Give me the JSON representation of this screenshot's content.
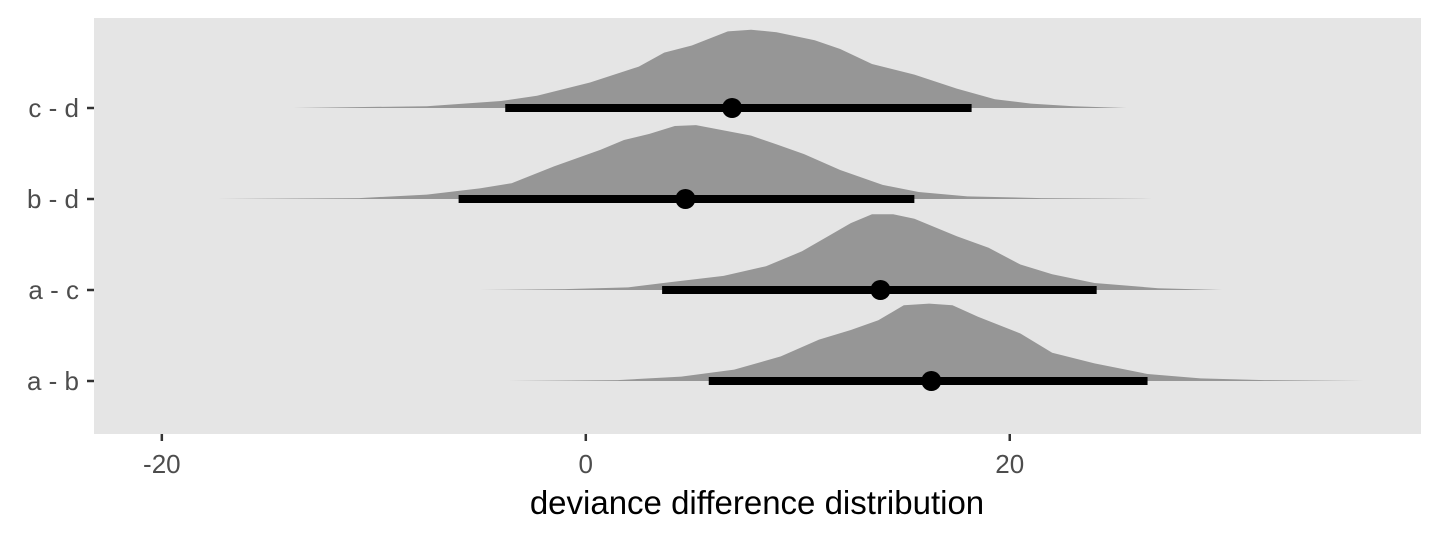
{
  "chart_data": {
    "type": "halfeye",
    "title": "",
    "xlabel": "deviance difference distribution",
    "ylabel": "",
    "xlim": [
      -23.2,
      39.4
    ],
    "x_ticks": [
      -20,
      0,
      20
    ],
    "x_tick_labels": [
      "-20",
      "0",
      "20"
    ],
    "grid": false,
    "categories": [
      "a - b",
      "a - c",
      "b - d",
      "c - d"
    ],
    "series": [
      {
        "label": "c - d",
        "point": 6.9,
        "interval": [
          -3.8,
          18.2
        ],
        "x_range": [
          -20,
          28.9
        ],
        "density": [
          [
            -20,
            0.0
          ],
          [
            -13.8,
            0.0
          ],
          [
            -7.5,
            0.02
          ],
          [
            -4.0,
            0.08
          ],
          [
            -2.3,
            0.14
          ],
          [
            0.2,
            0.29
          ],
          [
            2.5,
            0.47
          ],
          [
            3.7,
            0.63
          ],
          [
            5.0,
            0.71
          ],
          [
            6.7,
            0.87
          ],
          [
            7.8,
            0.89
          ],
          [
            9.0,
            0.86
          ],
          [
            10.8,
            0.77
          ],
          [
            12.0,
            0.67
          ],
          [
            13.5,
            0.5
          ],
          [
            15.5,
            0.38
          ],
          [
            17.5,
            0.22
          ],
          [
            19.3,
            0.1
          ],
          [
            21.0,
            0.05
          ],
          [
            23.0,
            0.02
          ],
          [
            25.5,
            0.0
          ],
          [
            28.9,
            0.0
          ]
        ]
      },
      {
        "label": "b - d",
        "point": 4.7,
        "interval": [
          -6.0,
          15.5
        ],
        "x_range": [
          -17.4,
          26.7
        ],
        "density": [
          [
            -17.4,
            0.0
          ],
          [
            -10.7,
            0.01
          ],
          [
            -7.5,
            0.05
          ],
          [
            -5.0,
            0.12
          ],
          [
            -3.5,
            0.18
          ],
          [
            -1.5,
            0.37
          ],
          [
            0.7,
            0.56
          ],
          [
            1.8,
            0.67
          ],
          [
            3.0,
            0.74
          ],
          [
            4.2,
            0.83
          ],
          [
            5.2,
            0.84
          ],
          [
            6.5,
            0.78
          ],
          [
            7.8,
            0.72
          ],
          [
            9.0,
            0.62
          ],
          [
            10.3,
            0.51
          ],
          [
            12.0,
            0.33
          ],
          [
            14.0,
            0.16
          ],
          [
            15.7,
            0.08
          ],
          [
            18.0,
            0.03
          ],
          [
            21.5,
            0.01
          ],
          [
            26.7,
            0.0
          ]
        ]
      },
      {
        "label": "a - c",
        "point": 13.9,
        "interval": [
          3.6,
          24.1
        ],
        "x_range": [
          -10.6,
          34.8
        ],
        "density": [
          [
            -10.6,
            0.0
          ],
          [
            -5.0,
            0.0
          ],
          [
            -1.0,
            0.01
          ],
          [
            2.0,
            0.03
          ],
          [
            4.0,
            0.09
          ],
          [
            6.5,
            0.16
          ],
          [
            8.5,
            0.27
          ],
          [
            10.2,
            0.44
          ],
          [
            11.5,
            0.62
          ],
          [
            12.5,
            0.76
          ],
          [
            13.5,
            0.86
          ],
          [
            14.5,
            0.86
          ],
          [
            15.5,
            0.81
          ],
          [
            17.5,
            0.61
          ],
          [
            19.0,
            0.48
          ],
          [
            20.5,
            0.29
          ],
          [
            22.0,
            0.18
          ],
          [
            24.0,
            0.08
          ],
          [
            27.0,
            0.02
          ],
          [
            30.0,
            0.0
          ],
          [
            34.8,
            0.0
          ]
        ]
      },
      {
        "label": "a - b",
        "point": 16.3,
        "interval": [
          5.8,
          26.5
        ],
        "x_range": [
          -10.2,
          36.7
        ],
        "density": [
          [
            -10.2,
            0.0
          ],
          [
            -4.0,
            0.0
          ],
          [
            1.5,
            0.01
          ],
          [
            4.5,
            0.05
          ],
          [
            7.0,
            0.13
          ],
          [
            9.2,
            0.28
          ],
          [
            11.0,
            0.47
          ],
          [
            12.5,
            0.58
          ],
          [
            13.8,
            0.69
          ],
          [
            15.0,
            0.86
          ],
          [
            16.2,
            0.88
          ],
          [
            17.3,
            0.86
          ],
          [
            18.5,
            0.73
          ],
          [
            20.5,
            0.54
          ],
          [
            22.0,
            0.32
          ],
          [
            24.0,
            0.2
          ],
          [
            26.5,
            0.08
          ],
          [
            29.0,
            0.03
          ],
          [
            32.0,
            0.01
          ],
          [
            36.7,
            0.0
          ]
        ]
      }
    ]
  }
}
